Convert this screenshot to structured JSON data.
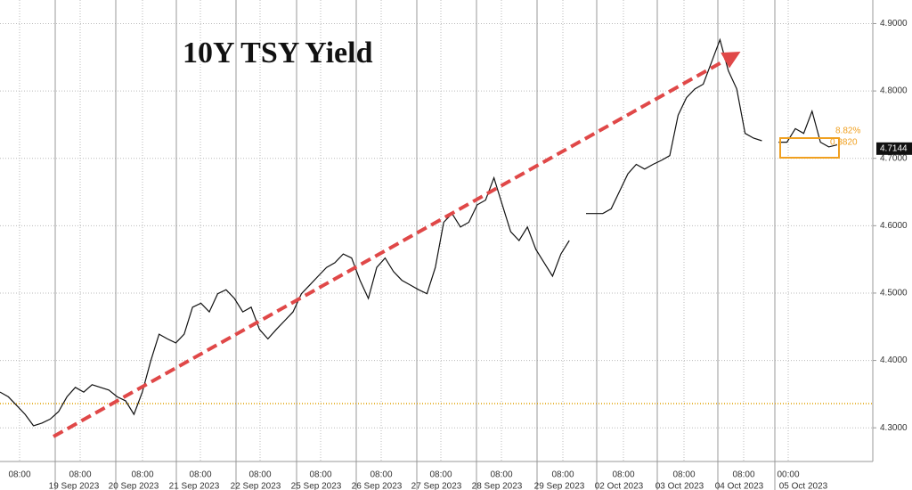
{
  "chart_data": {
    "type": "line",
    "title": "10Y TSY Yield",
    "time_labels": [
      "08:00",
      "08:00",
      "08:00",
      "08:00",
      "08:00",
      "08:00",
      "08:00",
      "08:00",
      "08:00",
      "08:00",
      "08:00",
      "08:00",
      "08:00",
      "00:00"
    ],
    "date_labels": [
      "19 Sep 2023",
      "20 Sep 2023",
      "21 Sep 2023",
      "22 Sep 2023",
      "25 Sep 2023",
      "26 Sep 2023",
      "27 Sep 2023",
      "28 Sep 2023",
      "29 Sep 2023",
      "02 Oct 2023",
      "03 Oct 2023",
      "04 Oct 2023",
      "05 Oct 2023"
    ],
    "series": [
      {
        "name": "10Y TSY Yield",
        "color": "#111111",
        "values": [
          4.353,
          4.346,
          4.333,
          4.32,
          4.303,
          4.307,
          4.313,
          4.324,
          4.346,
          4.36,
          4.353,
          4.364,
          4.36,
          4.356,
          4.346,
          4.34,
          4.32,
          4.353,
          4.399,
          4.439,
          4.432,
          4.426,
          4.439,
          4.479,
          4.485,
          4.472,
          4.499,
          4.505,
          4.492,
          4.472,
          4.479,
          4.446,
          4.432,
          4.446,
          4.459,
          4.472,
          4.499,
          4.512,
          4.525,
          4.538,
          4.545,
          4.558,
          4.552,
          4.519,
          4.492,
          4.538,
          4.552,
          4.532,
          4.519,
          4.512,
          4.505,
          4.499,
          4.538,
          4.605,
          4.618,
          4.598,
          4.605,
          4.631,
          4.638,
          4.671,
          4.631,
          4.591,
          4.578,
          4.598,
          4.565,
          4.545,
          4.525,
          4.558,
          4.578,
          null,
          4.618,
          4.618,
          4.618,
          4.625,
          4.651,
          4.677,
          4.691,
          4.684,
          4.691,
          4.697,
          4.704,
          4.764,
          4.79,
          4.803,
          4.81,
          4.843,
          4.876,
          4.83,
          4.803,
          4.737,
          4.73,
          4.726,
          null,
          4.724,
          4.724,
          4.744,
          4.737,
          4.77,
          4.724,
          4.717,
          4.72
        ]
      }
    ],
    "reference_line": {
      "value": 4.336,
      "color": "#e0a000"
    },
    "last_value": 4.7144,
    "annotations": [
      "8.82%",
      "0.3820"
    ],
    "ylim": [
      4.25,
      4.935
    ],
    "yticks": [
      {
        "value": 4.3,
        "label": "4.3000"
      },
      {
        "value": 4.4,
        "label": "4.4000"
      },
      {
        "value": 4.5,
        "label": "4.5000"
      },
      {
        "value": 4.6,
        "label": "4.6000"
      },
      {
        "value": 4.7,
        "label": "4.7000"
      },
      {
        "value": 4.8,
        "label": "4.8000"
      },
      {
        "value": 4.9,
        "label": "4.9000"
      }
    ],
    "grid": true
  }
}
